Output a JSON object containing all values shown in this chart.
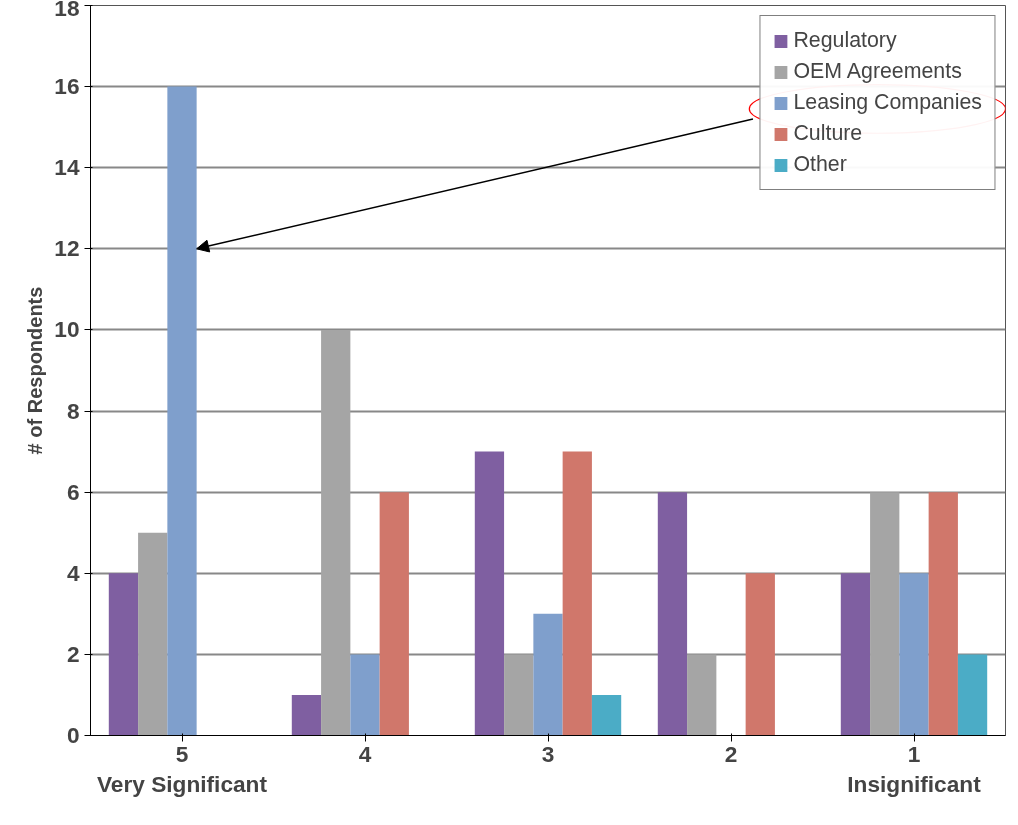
{
  "chart_data": {
    "type": "bar",
    "categories": [
      "5",
      "4",
      "3",
      "2",
      "1"
    ],
    "ylabel": "# of Respondents",
    "series": [
      {
        "name": "Regulatory",
        "color": "#7f5fa1",
        "values": [
          4,
          1,
          7,
          6,
          4
        ]
      },
      {
        "name": "OEM Agreements",
        "color": "#a5a5a5",
        "values": [
          5,
          10,
          2,
          2,
          6
        ]
      },
      {
        "name": "Leasing Companies",
        "color": "#7f9fcc",
        "values": [
          16,
          2,
          3,
          0,
          4
        ]
      },
      {
        "name": "Culture",
        "color": "#d0776b",
        "values": [
          0,
          6,
          7,
          4,
          6
        ]
      },
      {
        "name": "Other",
        "color": "#4bacc6",
        "values": [
          0,
          0,
          1,
          0,
          2
        ]
      }
    ],
    "annotations": [
      "Very Significant",
      "Insignificant"
    ],
    "ylim": [
      0,
      18
    ],
    "yticks": [
      0,
      2,
      4,
      6,
      8,
      10,
      12,
      14,
      16,
      18
    ],
    "grid": "y",
    "legend": "top right"
  }
}
